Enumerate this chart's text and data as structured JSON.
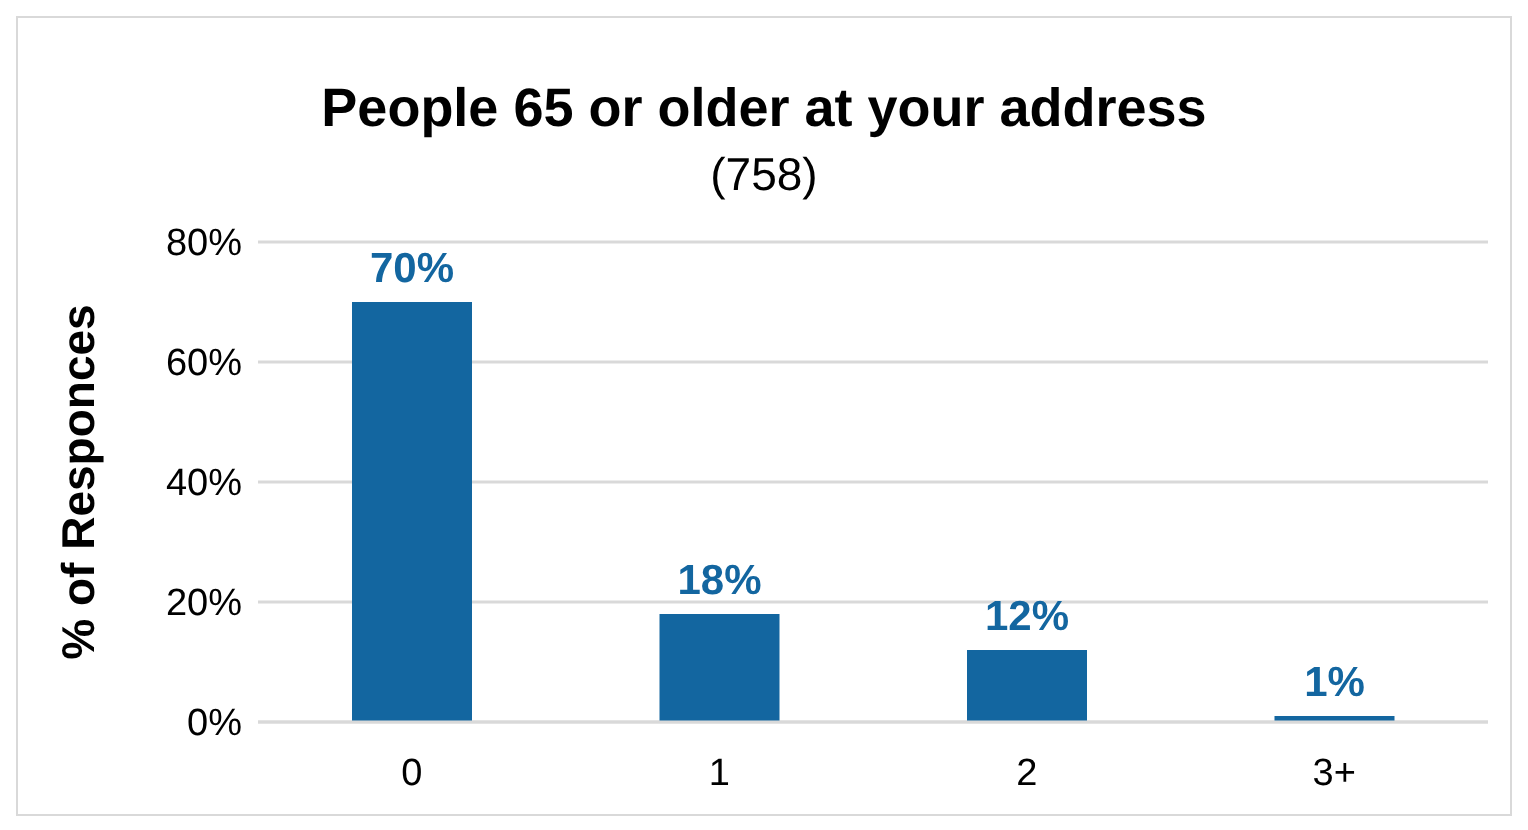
{
  "chart_data": {
    "type": "bar",
    "title": "People 65 or older at your address",
    "subtitle": "(758)",
    "ylabel": "% of Responces",
    "categories": [
      "0",
      "1",
      "2",
      "3+"
    ],
    "values": [
      70,
      18,
      12,
      1
    ],
    "color": "#1366a0",
    "value_labels": [
      "70%",
      "18%",
      "12%",
      "1%"
    ],
    "ylim": [
      0,
      80
    ],
    "yticks": [
      {
        "value": 0,
        "label": "0%"
      },
      {
        "value": 20,
        "label": "20%"
      },
      {
        "value": 40,
        "label": "40%"
      },
      {
        "value": 60,
        "label": "60%"
      },
      {
        "value": 80,
        "label": "80%"
      }
    ],
    "grid": "y"
  }
}
